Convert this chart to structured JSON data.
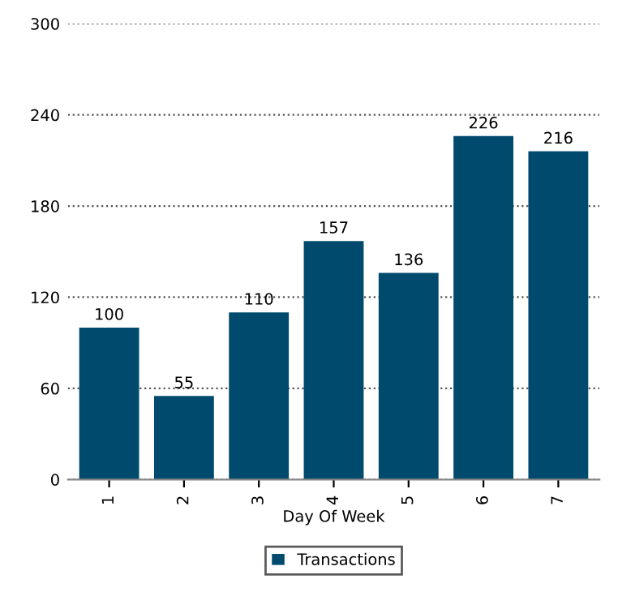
{
  "chart_data": {
    "type": "bar",
    "xlabel": "Day Of Week",
    "categories": [
      "1",
      "2",
      "3",
      "4",
      "5",
      "6",
      "7"
    ],
    "series": [
      {
        "name": "Transactions",
        "color": "#004a6e",
        "values": [
          100,
          55,
          110,
          157,
          136,
          226,
          216
        ]
      }
    ],
    "ylim": [
      0,
      300
    ],
    "yticks": [
      0,
      60,
      120,
      180,
      240,
      300
    ],
    "grid": "y",
    "legend": "bottom",
    "data_labels": true
  }
}
